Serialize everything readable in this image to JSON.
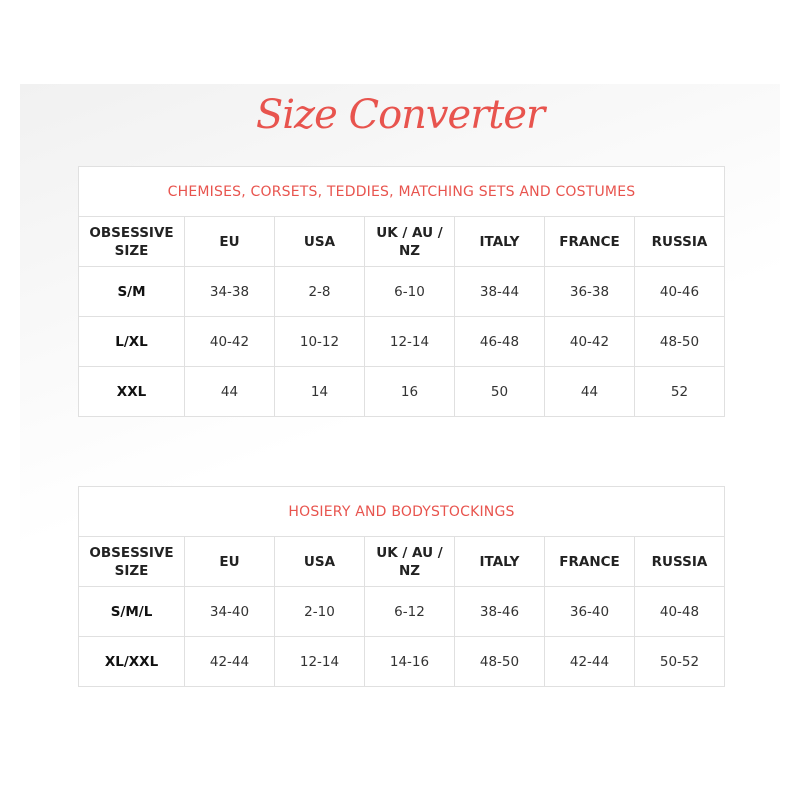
{
  "title": "Size Converter",
  "accent": "#e8544e",
  "tables": [
    {
      "caption": "CHEMISES, CORSETS, TEDDIES, MATCHING SETS AND COSTUMES",
      "headers": [
        "OBSESSIVE SIZE",
        "EU",
        "USA",
        "UK / AU / NZ",
        "ITALY",
        "FRANCE",
        "RUSSIA"
      ],
      "rows": [
        [
          "S/M",
          "34-38",
          "2-8",
          "6-10",
          "38-44",
          "36-38",
          "40-46"
        ],
        [
          "L/XL",
          "40-42",
          "10-12",
          "12-14",
          "46-48",
          "40-42",
          "48-50"
        ],
        [
          "XXL",
          "44",
          "14",
          "16",
          "50",
          "44",
          "52"
        ]
      ]
    },
    {
      "caption": "HOSIERY AND BODYSTOCKINGS",
      "headers": [
        "OBSESSIVE SIZE",
        "EU",
        "USA",
        "UK / AU / NZ",
        "ITALY",
        "FRANCE",
        "RUSSIA"
      ],
      "rows": [
        [
          "S/M/L",
          "34-40",
          "2-10",
          "6-12",
          "38-46",
          "36-40",
          "40-48"
        ],
        [
          "XL/XXL",
          "42-44",
          "12-14",
          "14-16",
          "48-50",
          "42-44",
          "50-52"
        ]
      ]
    }
  ]
}
